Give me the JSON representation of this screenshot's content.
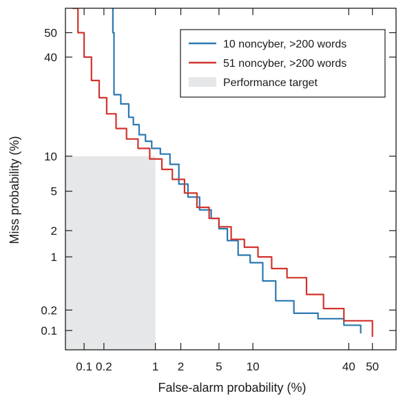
{
  "chart_data": {
    "type": "line",
    "title": "",
    "xlabel": "False-alarm probability (%)",
    "ylabel": "Miss probability (%)",
    "x_scale": "probit",
    "y_scale": "probit",
    "xlim": [
      0.05,
      60
    ],
    "ylim": [
      0.05,
      60
    ],
    "x_ticks": [
      0.1,
      0.2,
      1,
      2,
      5,
      10,
      40,
      50
    ],
    "x_tick_labels": [
      "0.1",
      "0.2",
      "1",
      "2",
      "5",
      "10",
      "40",
      "50"
    ],
    "y_ticks": [
      0.1,
      0.2,
      1,
      2,
      5,
      10,
      40,
      50
    ],
    "y_tick_labels": [
      "0.1",
      "0.2",
      "1",
      "2",
      "5",
      "10",
      "40",
      "50"
    ],
    "grid": false,
    "legend_position": "top-right",
    "performance_target": {
      "label": "Performance target",
      "color": "#e6e7e9",
      "x_range": [
        0.05,
        1
      ],
      "y_range": [
        0.05,
        10
      ]
    },
    "series": [
      {
        "name": "10 noncyber, >200 words",
        "color": "#2a78b0",
        "x": [
          0.27,
          0.27,
          0.28,
          0.35,
          0.45,
          0.52,
          0.62,
          0.75,
          0.9,
          1.15,
          1.5,
          1.9,
          2.4,
          3.2,
          4.2,
          5.0,
          6.0,
          7.5,
          9.5,
          12,
          15,
          20,
          28,
          38,
          45
        ],
        "y": [
          60,
          50,
          26,
          23,
          19,
          17,
          14.5,
          13,
          11.5,
          10.4,
          8.6,
          5.8,
          4.4,
          3.3,
          2.7,
          2.1,
          1.55,
          1.05,
          0.85,
          0.5,
          0.27,
          0.18,
          0.15,
          0.12,
          0.09
        ]
      },
      {
        "name": "51 noncyber, >200 words",
        "color": "#d1332c",
        "x": [
          0.065,
          0.08,
          0.1,
          0.13,
          0.17,
          0.22,
          0.3,
          0.42,
          0.6,
          0.85,
          1.2,
          1.6,
          2.2,
          3.0,
          4.0,
          5.0,
          6.5,
          8.5,
          11,
          14,
          18,
          24,
          30,
          38,
          50
        ],
        "y": [
          60,
          50,
          40,
          31,
          25,
          20,
          16,
          13.5,
          11.5,
          9.5,
          7.8,
          6.4,
          4.8,
          3.5,
          2.7,
          2.2,
          1.6,
          1.3,
          1.0,
          0.72,
          0.55,
          0.33,
          0.21,
          0.14,
          0.08
        ]
      }
    ]
  }
}
